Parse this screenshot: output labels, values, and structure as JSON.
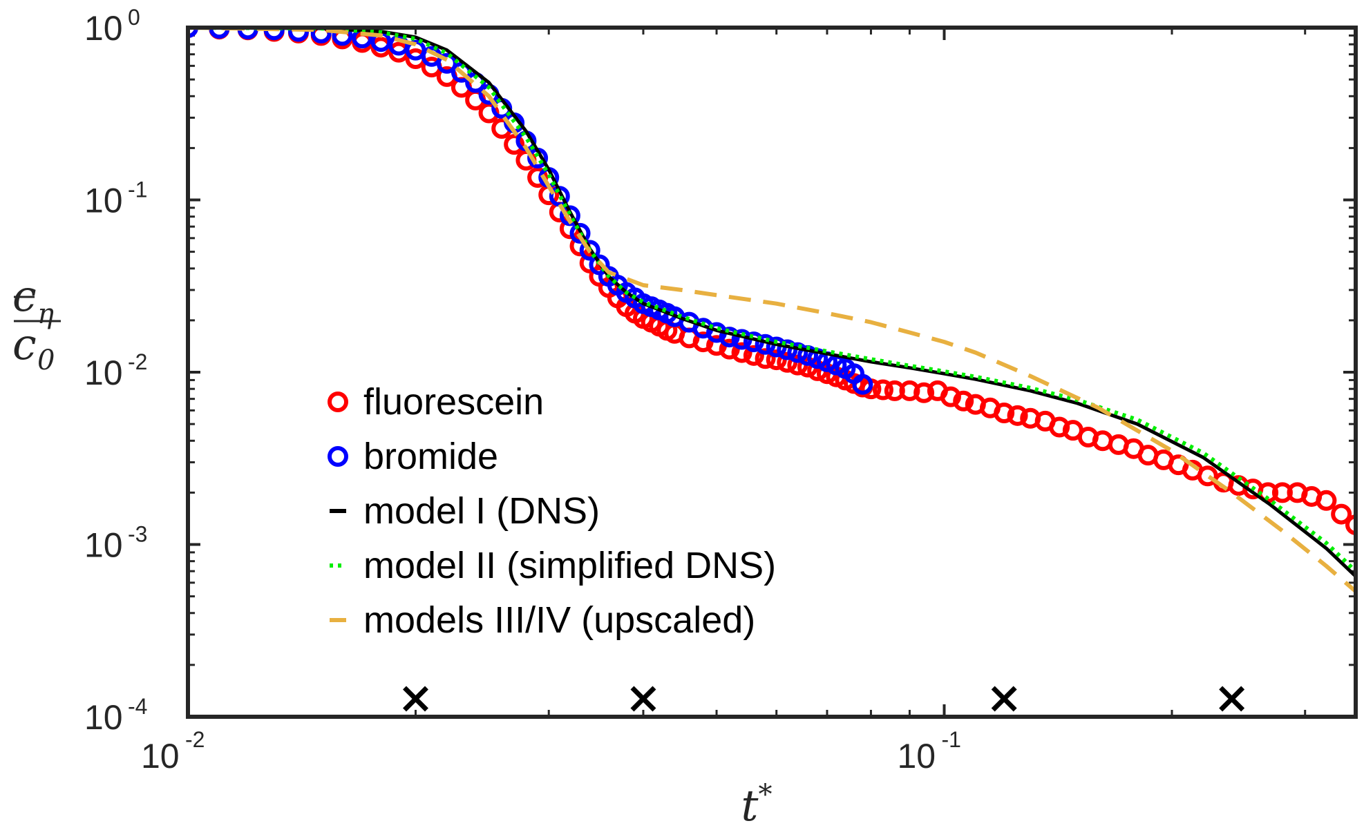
{
  "chart_data": {
    "type": "scatter",
    "xscale": "log",
    "yscale": "log",
    "xlim": [
      0.01,
      0.35
    ],
    "ylim": [
      0.0001,
      1
    ],
    "xlabel": "t*",
    "ylabel": "c̄η / c0",
    "x_ticks": [
      {
        "base": "10",
        "exp": "-2",
        "value": 0.01
      },
      {
        "base": "10",
        "exp": "-1",
        "value": 0.1
      }
    ],
    "y_ticks": [
      {
        "base": "10",
        "exp": "0",
        "value": 1
      },
      {
        "base": "10",
        "exp": "-1",
        "value": 0.1
      },
      {
        "base": "10",
        "exp": "-2",
        "value": 0.01
      },
      {
        "base": "10",
        "exp": "-3",
        "value": 0.001
      },
      {
        "base": "10",
        "exp": "-4",
        "value": 0.0001
      }
    ],
    "grid": false,
    "legend_position": "lower-left",
    "series": [
      {
        "name": "fluorescein",
        "kind": "markers",
        "color": "#ff0000",
        "x": [
          0.01,
          0.011,
          0.012,
          0.013,
          0.014,
          0.015,
          0.016,
          0.017,
          0.018,
          0.019,
          0.02,
          0.021,
          0.022,
          0.023,
          0.024,
          0.025,
          0.026,
          0.027,
          0.028,
          0.029,
          0.03,
          0.031,
          0.032,
          0.033,
          0.034,
          0.035,
          0.036,
          0.037,
          0.038,
          0.039,
          0.04,
          0.041,
          0.042,
          0.043,
          0.044,
          0.046,
          0.048,
          0.05,
          0.052,
          0.054,
          0.056,
          0.058,
          0.06,
          0.062,
          0.064,
          0.066,
          0.068,
          0.07,
          0.072,
          0.074,
          0.076,
          0.078,
          0.08,
          0.083,
          0.086,
          0.09,
          0.094,
          0.098,
          0.102,
          0.106,
          0.11,
          0.115,
          0.12,
          0.125,
          0.13,
          0.136,
          0.142,
          0.148,
          0.155,
          0.162,
          0.17,
          0.178,
          0.186,
          0.195,
          0.204,
          0.213,
          0.223,
          0.234,
          0.245,
          0.256,
          0.268,
          0.28,
          0.293,
          0.306,
          0.32,
          0.335,
          0.35,
          0.365,
          0.38,
          0.395,
          0.41
        ],
        "y": [
          1.0,
          0.98,
          0.97,
          0.95,
          0.93,
          0.9,
          0.86,
          0.82,
          0.77,
          0.72,
          0.66,
          0.59,
          0.52,
          0.45,
          0.38,
          0.32,
          0.26,
          0.21,
          0.17,
          0.135,
          0.107,
          0.085,
          0.068,
          0.054,
          0.043,
          0.036,
          0.031,
          0.027,
          0.024,
          0.022,
          0.0205,
          0.0195,
          0.0185,
          0.0175,
          0.0168,
          0.0158,
          0.015,
          0.0143,
          0.0136,
          0.013,
          0.0125,
          0.012,
          0.0118,
          0.0114,
          0.011,
          0.0107,
          0.0102,
          0.0098,
          0.0094,
          0.009,
          0.0086,
          0.0082,
          0.008,
          0.0079,
          0.0078,
          0.0078,
          0.0076,
          0.0078,
          0.0072,
          0.0068,
          0.0065,
          0.0062,
          0.0058,
          0.0056,
          0.0054,
          0.0052,
          0.0048,
          0.0046,
          0.0042,
          0.004,
          0.0038,
          0.0036,
          0.0033,
          0.0031,
          0.0029,
          0.0027,
          0.0025,
          0.0023,
          0.0022,
          0.0021,
          0.002,
          0.002,
          0.002,
          0.0019,
          0.0018,
          0.0015,
          0.0013,
          0.0013,
          0.0013,
          0.0013,
          0.0013
        ]
      },
      {
        "name": "bromide",
        "kind": "markers",
        "color": "#0000ff",
        "x": [
          0.01,
          0.011,
          0.012,
          0.013,
          0.014,
          0.015,
          0.016,
          0.017,
          0.018,
          0.019,
          0.02,
          0.021,
          0.022,
          0.023,
          0.024,
          0.025,
          0.026,
          0.027,
          0.028,
          0.029,
          0.03,
          0.031,
          0.032,
          0.033,
          0.034,
          0.035,
          0.036,
          0.037,
          0.038,
          0.039,
          0.04,
          0.041,
          0.042,
          0.043,
          0.044,
          0.046,
          0.048,
          0.05,
          0.052,
          0.054,
          0.056,
          0.058,
          0.06,
          0.062,
          0.064,
          0.066,
          0.068,
          0.07,
          0.072,
          0.074,
          0.076,
          0.078
        ],
        "y": [
          1.0,
          0.99,
          0.98,
          0.97,
          0.95,
          0.93,
          0.9,
          0.87,
          0.83,
          0.79,
          0.74,
          0.68,
          0.62,
          0.55,
          0.48,
          0.41,
          0.34,
          0.28,
          0.22,
          0.175,
          0.135,
          0.105,
          0.081,
          0.064,
          0.051,
          0.042,
          0.036,
          0.032,
          0.029,
          0.027,
          0.025,
          0.024,
          0.023,
          0.022,
          0.021,
          0.0195,
          0.018,
          0.017,
          0.016,
          0.0155,
          0.015,
          0.0145,
          0.014,
          0.0135,
          0.013,
          0.0125,
          0.012,
          0.0115,
          0.011,
          0.0105,
          0.0098,
          0.0085
        ]
      },
      {
        "name": "model I (DNS)",
        "kind": "solid",
        "color": "#000000",
        "x": [
          0.01,
          0.015,
          0.018,
          0.02,
          0.022,
          0.025,
          0.028,
          0.03,
          0.032,
          0.034,
          0.036,
          0.038,
          0.04,
          0.045,
          0.05,
          0.06,
          0.07,
          0.08,
          0.09,
          0.1,
          0.11,
          0.13,
          0.15,
          0.18,
          0.22,
          0.27,
          0.32,
          0.36,
          0.4
        ],
        "y": [
          1.0,
          0.99,
          0.95,
          0.88,
          0.74,
          0.48,
          0.25,
          0.15,
          0.085,
          0.052,
          0.036,
          0.029,
          0.025,
          0.0205,
          0.0175,
          0.0145,
          0.0128,
          0.0115,
          0.0106,
          0.0098,
          0.0091,
          0.0078,
          0.0066,
          0.005,
          0.0032,
          0.0017,
          0.00095,
          0.00058,
          0.00037
        ]
      },
      {
        "name": "model II (simplified DNS)",
        "kind": "dotted",
        "color": "#00ee00",
        "x": [
          0.01,
          0.015,
          0.018,
          0.02,
          0.022,
          0.025,
          0.028,
          0.03,
          0.032,
          0.034,
          0.036,
          0.038,
          0.04,
          0.045,
          0.05,
          0.06,
          0.07,
          0.08,
          0.09,
          0.1,
          0.11,
          0.13,
          0.15,
          0.18,
          0.22,
          0.27,
          0.32,
          0.36,
          0.4
        ],
        "y": [
          1.0,
          0.99,
          0.94,
          0.86,
          0.71,
          0.45,
          0.23,
          0.14,
          0.082,
          0.051,
          0.036,
          0.029,
          0.0255,
          0.021,
          0.018,
          0.015,
          0.0132,
          0.0119,
          0.0109,
          0.0101,
          0.0094,
          0.0081,
          0.0069,
          0.0053,
          0.0034,
          0.0018,
          0.00102,
          0.00062,
          0.00039
        ]
      },
      {
        "name": "models III/IV (upscaled)",
        "kind": "dashed",
        "color": "#e8b040",
        "x": [
          0.01,
          0.015,
          0.018,
          0.02,
          0.022,
          0.025,
          0.028,
          0.03,
          0.032,
          0.034,
          0.036,
          0.04,
          0.045,
          0.05,
          0.06,
          0.07,
          0.08,
          0.09,
          0.1,
          0.11,
          0.13,
          0.16,
          0.2,
          0.24,
          0.28,
          0.32,
          0.36,
          0.4
        ],
        "y": [
          1.0,
          0.97,
          0.9,
          0.8,
          0.65,
          0.4,
          0.2,
          0.12,
          0.075,
          0.05,
          0.038,
          0.032,
          0.03,
          0.028,
          0.025,
          0.022,
          0.0195,
          0.017,
          0.015,
          0.013,
          0.0095,
          0.0062,
          0.0035,
          0.002,
          0.0012,
          0.00075,
          0.00048,
          0.00032
        ]
      }
    ],
    "markers_x": [
      0.02,
      0.04,
      0.12,
      0.24
    ]
  }
}
